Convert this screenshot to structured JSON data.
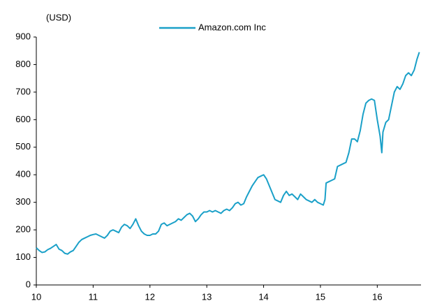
{
  "chart_data": {
    "type": "line",
    "unit_label": "(USD)",
    "x": [
      10.0,
      10.05,
      10.1,
      10.15,
      10.2,
      10.25,
      10.3,
      10.35,
      10.4,
      10.45,
      10.5,
      10.55,
      10.6,
      10.65,
      10.7,
      10.75,
      10.8,
      10.85,
      10.9,
      10.95,
      11.0,
      11.05,
      11.1,
      11.15,
      11.2,
      11.25,
      11.3,
      11.35,
      11.4,
      11.45,
      11.5,
      11.55,
      11.6,
      11.65,
      11.7,
      11.75,
      11.8,
      11.85,
      11.9,
      11.95,
      12.0,
      12.05,
      12.1,
      12.15,
      12.2,
      12.25,
      12.3,
      12.35,
      12.4,
      12.45,
      12.5,
      12.55,
      12.6,
      12.65,
      12.7,
      12.75,
      12.8,
      12.85,
      12.9,
      12.95,
      13.0,
      13.05,
      13.1,
      13.15,
      13.2,
      13.25,
      13.3,
      13.35,
      13.4,
      13.45,
      13.5,
      13.55,
      13.6,
      13.65,
      13.7,
      13.75,
      13.8,
      13.85,
      13.9,
      13.95,
      14.0,
      14.05,
      14.1,
      14.15,
      14.2,
      14.25,
      14.3,
      14.35,
      14.4,
      14.45,
      14.5,
      14.55,
      14.6,
      14.65,
      14.7,
      14.75,
      14.8,
      14.85,
      14.9,
      14.95,
      15.0,
      15.05,
      15.08,
      15.1,
      15.15,
      15.2,
      15.25,
      15.3,
      15.35,
      15.4,
      15.45,
      15.5,
      15.55,
      15.6,
      15.65,
      15.7,
      15.75,
      15.8,
      15.85,
      15.9,
      15.95,
      16.0,
      16.05,
      16.08,
      16.1,
      16.15,
      16.2,
      16.25,
      16.3,
      16.35,
      16.4,
      16.45,
      16.5,
      16.55,
      16.6,
      16.65,
      16.7,
      16.74
    ],
    "series": [
      {
        "name": "Amazon.com Inc",
        "color": "#1aa0c8",
        "values": [
          135,
          125,
          118,
          120,
          128,
          133,
          140,
          147,
          130,
          125,
          115,
          112,
          120,
          125,
          140,
          155,
          165,
          170,
          175,
          180,
          183,
          185,
          180,
          175,
          170,
          180,
          195,
          200,
          195,
          190,
          210,
          220,
          215,
          205,
          220,
          240,
          215,
          195,
          185,
          180,
          180,
          185,
          185,
          195,
          220,
          225,
          215,
          220,
          225,
          230,
          240,
          235,
          245,
          255,
          260,
          250,
          230,
          240,
          255,
          265,
          265,
          270,
          265,
          270,
          265,
          260,
          270,
          275,
          270,
          280,
          295,
          300,
          290,
          295,
          320,
          340,
          360,
          375,
          390,
          395,
          400,
          385,
          360,
          335,
          310,
          305,
          300,
          325,
          340,
          325,
          330,
          320,
          310,
          330,
          320,
          310,
          305,
          300,
          310,
          300,
          295,
          290,
          310,
          370,
          375,
          380,
          385,
          430,
          435,
          440,
          445,
          480,
          530,
          530,
          520,
          560,
          620,
          660,
          670,
          675,
          670,
          600,
          540,
          480,
          555,
          590,
          600,
          650,
          700,
          720,
          710,
          730,
          760,
          770,
          760,
          780,
          820,
          845
        ]
      }
    ],
    "xlim": [
      10,
      16.77
    ],
    "xticks": [
      10,
      11,
      12,
      13,
      14,
      15,
      16
    ],
    "ylim": [
      0,
      900
    ],
    "yticks": [
      0,
      100,
      200,
      300,
      400,
      500,
      600,
      700,
      800,
      900
    ],
    "grid": false,
    "legend": "top"
  }
}
